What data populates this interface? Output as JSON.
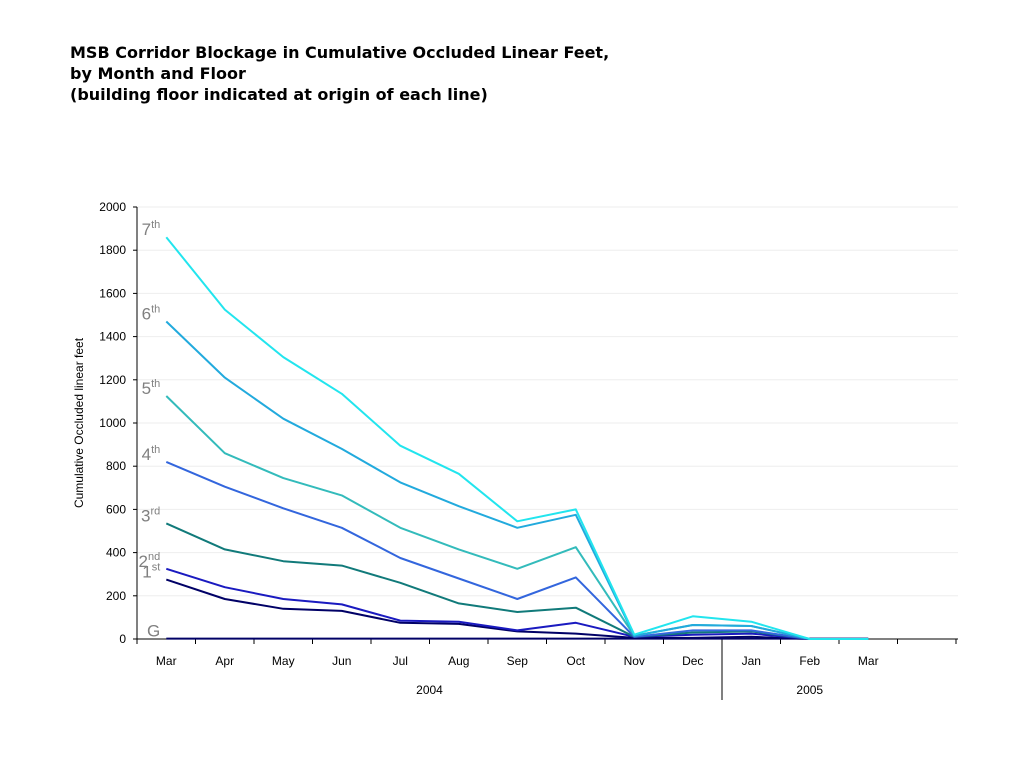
{
  "title_lines": [
    "MSB Corridor Blockage in Cumulative Occluded Linear Feet,",
    "by Month and Floor",
    "(building floor indicated at origin of each line)"
  ],
  "chart_data": {
    "type": "line",
    "title": "MSB Corridor Blockage in Cumulative Occluded Linear Feet, by Month and Floor (building floor indicated at origin of each line)",
    "xlabel": "",
    "ylabel": "Cumulative Occluded linear feet",
    "ylim": [
      0,
      2000
    ],
    "yticks": [
      0,
      200,
      400,
      600,
      800,
      1000,
      1200,
      1400,
      1600,
      1800,
      2000
    ],
    "categories": [
      "Mar",
      "Apr",
      "May",
      "Jun",
      "Jul",
      "Aug",
      "Sep",
      "Oct",
      "Nov",
      "Dec",
      "Jan",
      "Feb",
      "Mar"
    ],
    "year_groups": [
      {
        "label": "2004",
        "start": 0,
        "end": 9
      },
      {
        "label": "2005",
        "start": 10,
        "end": 12
      }
    ],
    "grid": true,
    "legend": "none",
    "series": [
      {
        "name": "G",
        "base": "G",
        "sup": "",
        "color": "#000066",
        "values": [
          2,
          2,
          2,
          2,
          2,
          2,
          2,
          2,
          2,
          2,
          2,
          2,
          2
        ]
      },
      {
        "name": "1st",
        "base": "1",
        "sup": "st",
        "color": "#000066",
        "values": [
          275,
          185,
          140,
          130,
          75,
          70,
          35,
          25,
          5,
          5,
          10,
          0,
          0
        ]
      },
      {
        "name": "2nd",
        "base": "2",
        "sup": "nd",
        "color": "#1a1ac0",
        "values": [
          325,
          240,
          185,
          160,
          85,
          80,
          40,
          75,
          10,
          20,
          25,
          0,
          0
        ]
      },
      {
        "name": "3rd",
        "base": "3",
        "sup": "rd",
        "color": "#117a7a",
        "values": [
          535,
          415,
          360,
          340,
          260,
          165,
          125,
          145,
          10,
          30,
          35,
          0,
          0
        ]
      },
      {
        "name": "4th",
        "base": "4",
        "sup": "th",
        "color": "#3366dd",
        "values": [
          820,
          705,
          605,
          515,
          375,
          280,
          185,
          285,
          10,
          40,
          40,
          0,
          0
        ]
      },
      {
        "name": "5th",
        "base": "5",
        "sup": "th",
        "color": "#33bbbb",
        "values": [
          1125,
          860,
          745,
          665,
          515,
          415,
          325,
          425,
          15,
          65,
          60,
          0,
          0
        ]
      },
      {
        "name": "6th",
        "base": "6",
        "sup": "th",
        "color": "#22aadd",
        "values": [
          1470,
          1210,
          1020,
          880,
          725,
          615,
          515,
          575,
          15,
          65,
          60,
          0,
          0
        ]
      },
      {
        "name": "7th",
        "base": "7",
        "sup": "th",
        "color": "#22e5ee",
        "values": [
          1860,
          1525,
          1305,
          1135,
          895,
          765,
          545,
          600,
          20,
          105,
          80,
          0,
          0
        ]
      }
    ]
  }
}
